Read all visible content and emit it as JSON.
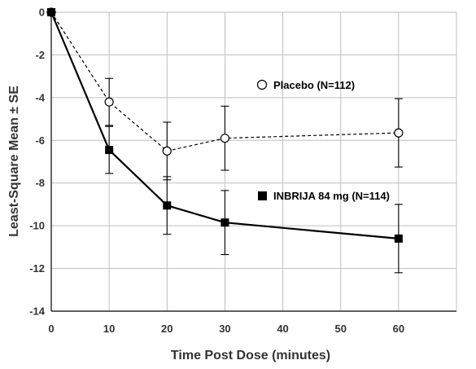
{
  "chart_data": {
    "type": "line",
    "title": "",
    "xlabel": "Time Post Dose (minutes)",
    "ylabel": "Least-Square Mean ± SE",
    "xlim": [
      0,
      70
    ],
    "ylim": [
      -14,
      0
    ],
    "xticks": [
      0,
      10,
      20,
      30,
      40,
      50,
      60
    ],
    "yticks": [
      0,
      -2,
      -4,
      -6,
      -8,
      -10,
      -12,
      -14
    ],
    "grid": true,
    "series": [
      {
        "name": "Placebo (N=112)",
        "x": [
          0,
          10,
          20,
          30,
          60
        ],
        "y": [
          0,
          -4.2,
          -6.5,
          -5.9,
          -5.65
        ],
        "se": [
          0,
          1.1,
          1.35,
          1.5,
          1.6
        ],
        "marker": "open-circle",
        "line_style": "dashed",
        "color": "#000000"
      },
      {
        "name": "INBRIJA 84 mg (N=114)",
        "x": [
          0,
          10,
          20,
          30,
          60
        ],
        "y": [
          0,
          -6.45,
          -9.05,
          -9.85,
          -10.6
        ],
        "se": [
          0,
          1.1,
          1.35,
          1.5,
          1.6
        ],
        "marker": "filled-square",
        "line_style": "solid",
        "color": "#000000"
      }
    ]
  }
}
